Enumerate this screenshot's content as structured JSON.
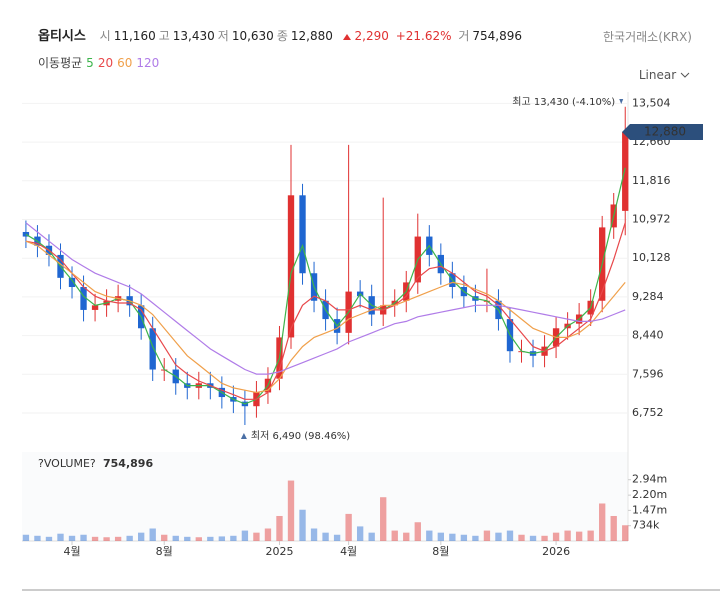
{
  "chart_data": {
    "type": "candlestick",
    "stock_name": "옵티시스",
    "quote": [
      {
        "label": "시",
        "value": "11,160"
      },
      {
        "label": "고",
        "value": "13,430"
      },
      {
        "label": "저",
        "value": "10,630"
      },
      {
        "label": "종",
        "value": "12,880"
      }
    ],
    "change": "2,290",
    "change_pct": "+21.62%",
    "volume_quote": {
      "label": "거",
      "value": "754,896"
    },
    "exchange": "한국거래소(KRX)",
    "ma_title": "이동평균",
    "scale_mode": "Linear",
    "up_color": "#e03131",
    "down_color": "#1f66d1",
    "x": [
      1.0,
      1.5,
      2.0,
      2.5,
      3.0,
      3.5,
      4.0,
      4.5,
      5.0,
      5.5,
      6.0,
      6.5,
      7.0,
      7.5,
      8.0,
      8.5,
      9.0,
      9.5,
      10.0,
      10.5,
      11.0,
      11.5,
      12.0,
      12.5,
      13.0,
      13.5,
      14.0,
      14.5,
      15.0,
      15.5,
      16.0,
      16.5,
      17.0,
      17.5,
      18.0,
      18.5,
      19.0,
      19.5,
      20.0,
      20.5,
      21.0,
      21.5,
      22.0,
      22.5,
      23.0,
      23.5,
      24.0,
      24.5,
      25.0,
      25.5,
      26.0,
      26.5,
      27.0
    ],
    "open": [
      10700,
      10600,
      10400,
      10200,
      9700,
      9500,
      9000,
      9100,
      9200,
      9300,
      9100,
      8600,
      7700,
      7700,
      7400,
      7300,
      7400,
      7300,
      7100,
      7000,
      6900,
      7200,
      7500,
      8400,
      11500,
      9800,
      9200,
      8800,
      8500,
      9400,
      9300,
      8900,
      9100,
      9200,
      9600,
      10600,
      10200,
      9800,
      9500,
      9300,
      9200,
      9200,
      8800,
      8100,
      8100,
      8000,
      8200,
      8600,
      8700,
      8900,
      9200,
      10800,
      11160
    ],
    "high": [
      10950,
      10850,
      10650,
      10450,
      9950,
      9750,
      9350,
      9450,
      9550,
      9550,
      9350,
      8850,
      7950,
      7950,
      7650,
      7650,
      7650,
      7550,
      7350,
      7250,
      7450,
      7750,
      8650,
      12600,
      11750,
      10050,
      9450,
      9050,
      12600,
      9650,
      9550,
      11450,
      9450,
      9850,
      11100,
      10850,
      10450,
      10050,
      9750,
      9550,
      9900,
      9450,
      9050,
      8350,
      8350,
      8450,
      8850,
      8950,
      9150,
      9450,
      11050,
      11550,
      13430
    ],
    "low": [
      10350,
      10150,
      9950,
      9450,
      9250,
      8750,
      8750,
      8850,
      8950,
      8850,
      8350,
      7450,
      7450,
      7150,
      7050,
      7050,
      7050,
      6850,
      6750,
      6490,
      6650,
      6950,
      7250,
      8150,
      9550,
      8950,
      8550,
      8250,
      8250,
      9050,
      8650,
      8650,
      8850,
      8950,
      9350,
      9950,
      9550,
      9250,
      9050,
      8950,
      8950,
      8550,
      7850,
      7850,
      7750,
      7750,
      7950,
      8350,
      8450,
      8650,
      8950,
      10550,
      10630
    ],
    "close": [
      10600,
      10400,
      10200,
      9700,
      9500,
      9000,
      9100,
      9200,
      9300,
      9100,
      8600,
      7700,
      7700,
      7400,
      7300,
      7400,
      7300,
      7100,
      7000,
      6900,
      7200,
      7500,
      8400,
      11500,
      9800,
      9200,
      8800,
      8500,
      9400,
      9300,
      8900,
      9100,
      9200,
      9600,
      10600,
      10200,
      9800,
      9500,
      9300,
      9200,
      9200,
      8800,
      8100,
      8100,
      8000,
      8200,
      8600,
      8700,
      8900,
      9200,
      10800,
      11300,
      12880
    ],
    "series": [
      {
        "name": "5",
        "color": "#3cb44b",
        "values": [
          10650,
          10500,
          10300,
          9950,
          9650,
          9300,
          9100,
          9150,
          9250,
          9200,
          8850,
          8200,
          7700,
          7550,
          7350,
          7350,
          7350,
          7200,
          7050,
          6950,
          7050,
          7350,
          7950,
          9800,
          10400,
          9500,
          9000,
          8650,
          8950,
          9350,
          9100,
          9000,
          9150,
          9400,
          10100,
          10400,
          10000,
          9650,
          9400,
          9250,
          9200,
          9000,
          8450,
          8100,
          8050,
          8100,
          8400,
          8650,
          8800,
          9050,
          10000,
          11050,
          12100
        ]
      },
      {
        "name": "20",
        "color": "#e8484b",
        "values": [
          10500,
          10450,
          10300,
          10100,
          9800,
          9500,
          9300,
          9200,
          9150,
          9150,
          9000,
          8600,
          8200,
          7800,
          7600,
          7450,
          7350,
          7250,
          7150,
          7050,
          7050,
          7200,
          7700,
          8600,
          9100,
          9300,
          9200,
          9000,
          9000,
          9100,
          9000,
          9000,
          9100,
          9300,
          9700,
          9900,
          9950,
          9800,
          9600,
          9400,
          9300,
          9100,
          8800,
          8500,
          8200,
          8100,
          8200,
          8400,
          8600,
          8800,
          9400,
          10100,
          10900
        ]
      },
      {
        "name": "60",
        "color": "#f0a04b",
        "values": [
          10500,
          10400,
          10200,
          10000,
          9800,
          9600,
          9400,
          9300,
          9250,
          9200,
          9100,
          8900,
          8600,
          8300,
          8000,
          7800,
          7600,
          7400,
          7300,
          7250,
          7200,
          7250,
          7500,
          7900,
          8200,
          8400,
          8500,
          8600,
          8800,
          8900,
          9000,
          9100,
          9100,
          9200,
          9300,
          9400,
          9500,
          9600,
          9550,
          9450,
          9350,
          9200,
          9000,
          8800,
          8600,
          8500,
          8400,
          8400,
          8500,
          8700,
          9000,
          9300,
          9600
        ]
      },
      {
        "name": "120",
        "color": "#b07ce8",
        "values": [
          10900,
          10700,
          10500,
          10300,
          10100,
          9950,
          9800,
          9700,
          9600,
          9500,
          9350,
          9150,
          8950,
          8750,
          8550,
          8350,
          8150,
          8000,
          7850,
          7700,
          7600,
          7600,
          7650,
          7750,
          7850,
          7950,
          8050,
          8150,
          8300,
          8400,
          8500,
          8600,
          8700,
          8750,
          8850,
          8900,
          8950,
          9000,
          9050,
          9100,
          9100,
          9100,
          9050,
          9000,
          8950,
          8900,
          8850,
          8800,
          8750,
          8750,
          8800,
          8900,
          9000
        ]
      }
    ],
    "xlim": [
      0.83,
      27.12
    ],
    "xticks": [
      {
        "value": 3,
        "label": "4월"
      },
      {
        "value": 7,
        "label": "8월"
      },
      {
        "value": 12,
        "label": "2025"
      },
      {
        "value": 15,
        "label": "4월"
      },
      {
        "value": 19,
        "label": "8월"
      },
      {
        "value": 24,
        "label": "2026"
      }
    ],
    "ylim": [
      6054,
      13753
    ],
    "yticks": [
      {
        "value": 13504,
        "label": "13,504"
      },
      {
        "value": 12660,
        "label": "12,660"
      },
      {
        "value": 11816,
        "label": "11,816"
      },
      {
        "value": 10972,
        "label": "10,972"
      },
      {
        "value": 10128,
        "label": "10,128"
      },
      {
        "value": 9284,
        "label": "9,284"
      },
      {
        "value": 8440,
        "label": "8,440"
      },
      {
        "value": 7596,
        "label": "7,596"
      },
      {
        "value": 6752,
        "label": "6,752"
      }
    ],
    "price_badge": {
      "value": 12880,
      "label": "12,880"
    },
    "annotations": {
      "high": "최고 13,430 (-4.10%)",
      "low": "최저 6,490 (98.46%)"
    },
    "volume": {
      "title": "?VOLUME?",
      "current": "754,896",
      "values": [
        300000,
        250000,
        200000,
        350000,
        250000,
        300000,
        200000,
        180000,
        200000,
        250000,
        400000,
        600000,
        300000,
        250000,
        200000,
        180000,
        200000,
        220000,
        250000,
        500000,
        400000,
        600000,
        1200000,
        2900000,
        1500000,
        600000,
        400000,
        300000,
        1300000,
        700000,
        400000,
        2100000,
        500000,
        400000,
        900000,
        500000,
        400000,
        350000,
        300000,
        250000,
        500000,
        400000,
        500000,
        300000,
        250000,
        250000,
        400000,
        500000,
        450000,
        500000,
        1800000,
        1200000,
        754896
      ],
      "ylim": [
        0,
        4270000
      ],
      "yticks": [
        {
          "value": 2940000,
          "label": "2.94m"
        },
        {
          "value": 2200000,
          "label": "2.20m"
        },
        {
          "value": 1470000,
          "label": "1.47m"
        },
        {
          "value": 734000,
          "label": "734k"
        }
      ]
    }
  }
}
